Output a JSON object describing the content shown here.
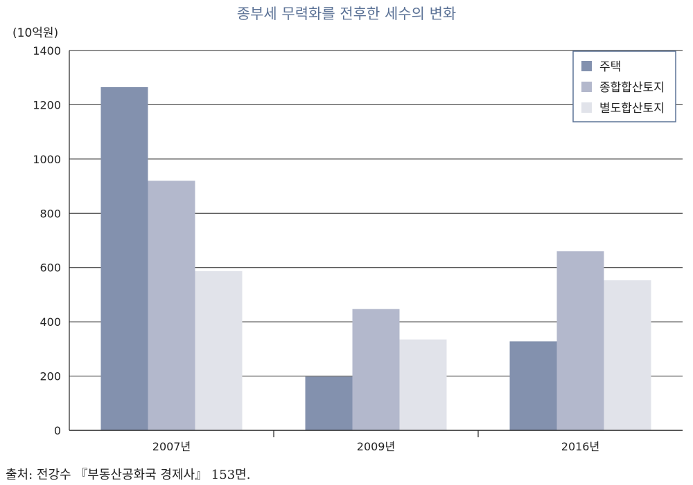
{
  "chart_data": {
    "type": "bar",
    "title": "종부세 무력화를 전후한 세수의 변화",
    "unit_label": "(10억원)",
    "categories": [
      "2007년",
      "2009년",
      "2016년"
    ],
    "series": [
      {
        "name": "주택",
        "color": "#8391ae",
        "values": [
          1265,
          198,
          328
        ]
      },
      {
        "name": "종합합산토지",
        "color": "#b3b8cc",
        "values": [
          920,
          447,
          660
        ]
      },
      {
        "name": "별도합산토지",
        "color": "#e1e3ea",
        "values": [
          587,
          335,
          553
        ]
      }
    ],
    "ylim": [
      0,
      1400
    ],
    "yticks": [
      "0",
      "200",
      "400",
      "600",
      "800",
      "1000",
      "1200",
      "1400"
    ],
    "grid": true,
    "legend_position": "top-right",
    "colors": {
      "title": "#5b7296",
      "legend_border": "#5b7296",
      "grid": "#222222"
    }
  },
  "source": "출처: 전강수 『부동산공화국 경제사』 153면."
}
